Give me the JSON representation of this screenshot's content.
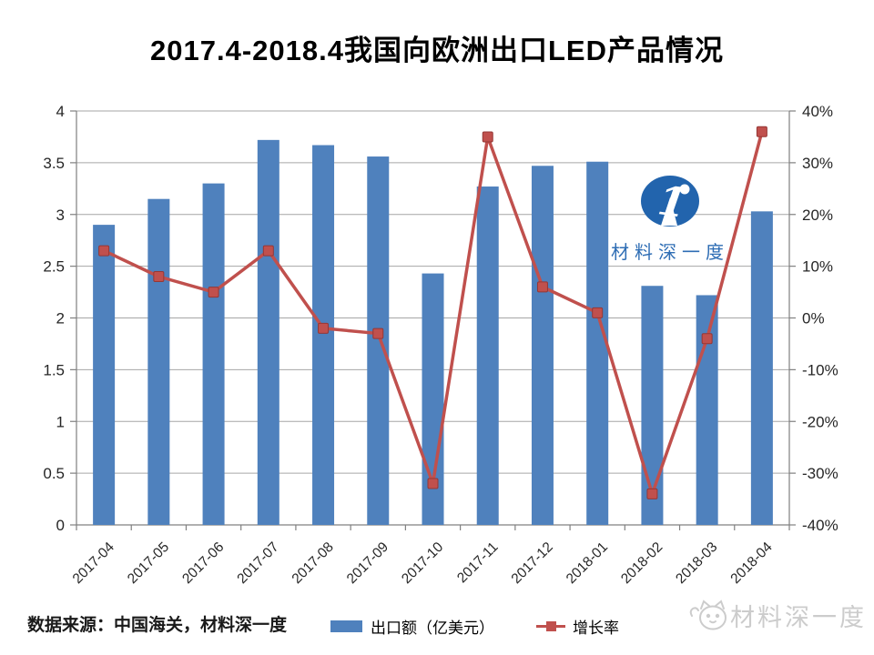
{
  "title": "2017.4-2018.4我国向欧洲出口LED产品情况",
  "footer": {
    "source_note": "数据来源：中国海关，材料深一度"
  },
  "legend": {
    "items": [
      {
        "label": "出口额（亿美元）",
        "type": "bar"
      },
      {
        "label": "增长率",
        "type": "line"
      }
    ]
  },
  "watermarks": {
    "center_logo_mark": "1°",
    "center_logo_text": "材料深一度",
    "corner_icon": "cat-icon",
    "corner_text": "材料深一度"
  },
  "colors": {
    "bar": "#4f81bd",
    "line": "#c0504d",
    "marker_border": "#953735",
    "grid": "#a6a6a6",
    "axis": "#808080",
    "tick_text": "#262626",
    "logo_blue": "#2264ad",
    "watermark_gray": "#cccccc"
  },
  "chart_data": {
    "type": "combo_bar_line",
    "title": "2017.4-2018.4我国向欧洲出口LED产品情况",
    "categories": [
      "2017-04",
      "2017-05",
      "2017-06",
      "2017-07",
      "2017-08",
      "2017-09",
      "2017-10",
      "2017-11",
      "2017-12",
      "2018-01",
      "2018-02",
      "2018-03",
      "2018-04"
    ],
    "series": [
      {
        "name": "出口额（亿美元）",
        "chart_type": "bar",
        "axis": "left",
        "color": "#4f81bd",
        "values": [
          2.9,
          3.15,
          3.3,
          3.72,
          3.67,
          3.56,
          2.43,
          3.27,
          3.47,
          3.51,
          2.31,
          2.22,
          3.03
        ]
      },
      {
        "name": "增长率",
        "chart_type": "line",
        "axis": "right",
        "color": "#c0504d",
        "values": [
          13,
          8,
          5,
          13,
          -2,
          -3,
          -32,
          35,
          6,
          1,
          -34,
          -4,
          36
        ]
      }
    ],
    "left_axis": {
      "min": 0,
      "max": 4,
      "step": 0.5,
      "tick_values": [
        0,
        0.5,
        1,
        1.5,
        2,
        2.5,
        3,
        3.5,
        4
      ],
      "tick_labels": [
        "0",
        "0.5",
        "1",
        "1.5",
        "2",
        "2.5",
        "3",
        "3.5",
        "4"
      ]
    },
    "right_axis": {
      "min": -40,
      "max": 40,
      "step": 10,
      "tick_values": [
        -40,
        -30,
        -20,
        -10,
        0,
        10,
        20,
        30,
        40
      ],
      "tick_labels": [
        "-40%",
        "-30%",
        "-20%",
        "-10%",
        "0%",
        "10%",
        "20%",
        "30%",
        "40%"
      ],
      "unit": "%"
    },
    "grid": true,
    "legend_position": "bottom",
    "x_label_rotation": -45
  }
}
